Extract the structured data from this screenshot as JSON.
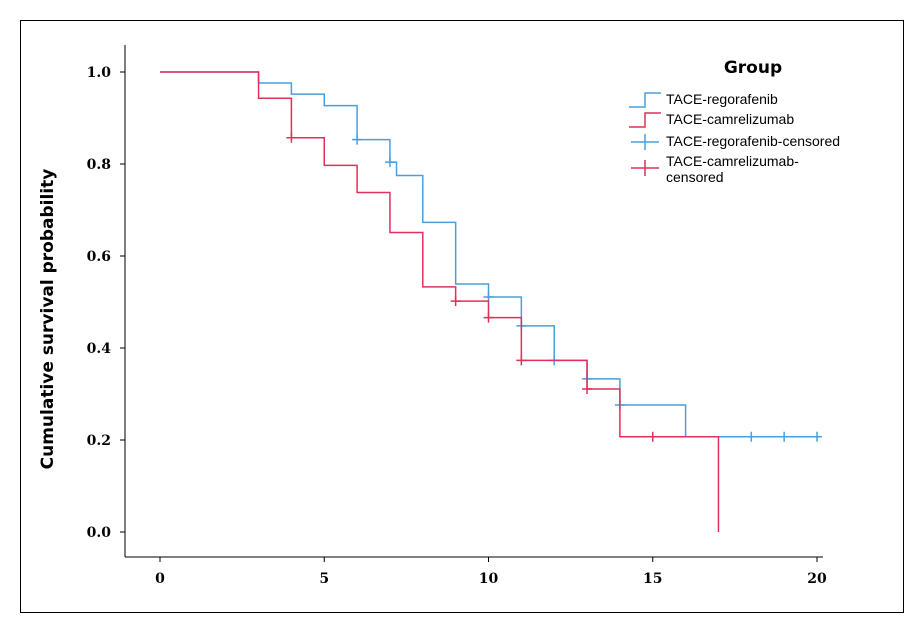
{
  "chart_data": {
    "type": "line",
    "title": "",
    "xlabel": "",
    "ylabel": "Cumulative survival probability",
    "xlim": [
      0,
      20
    ],
    "ylim": [
      0,
      1
    ],
    "xticks": [
      "0",
      "5",
      "10",
      "15",
      "20"
    ],
    "yticks": [
      "0.0",
      "0.2",
      "0.4",
      "0.6",
      "0.8",
      "1.0"
    ],
    "grid": false,
    "legend_title": "Group",
    "legend_position": "top-right",
    "legend": [
      {
        "label": "TACE-regorafenib",
        "kind": "step",
        "color": "#4a9fdb"
      },
      {
        "label": "TACE-camrelizumab",
        "kind": "step",
        "color": "#e0305a"
      },
      {
        "label": "TACE-regorafenib-censored",
        "kind": "cross",
        "color": "#4a9fdb"
      },
      {
        "label": "TACE-camrelizumab-censored",
        "kind": "cross",
        "color": "#e0305a"
      }
    ],
    "series": [
      {
        "name": "TACE-regorafenib",
        "color": "#4a9fdb",
        "steps": [
          [
            0,
            1.0
          ],
          [
            3,
            0.976
          ],
          [
            4,
            0.952
          ],
          [
            5,
            0.927
          ],
          [
            6,
            0.853
          ],
          [
            7,
            0.804
          ],
          [
            7.2,
            0.775
          ],
          [
            8,
            0.673
          ],
          [
            9,
            0.539
          ],
          [
            10,
            0.511
          ],
          [
            11,
            0.448
          ],
          [
            12,
            0.373
          ],
          [
            13,
            0.333
          ],
          [
            14,
            0.276
          ],
          [
            16,
            0.207
          ],
          [
            20,
            0.207
          ]
        ],
        "censored": [
          [
            6,
            0.853
          ],
          [
            7,
            0.804
          ],
          [
            10,
            0.511
          ],
          [
            11,
            0.448
          ],
          [
            12,
            0.373
          ],
          [
            13,
            0.333
          ],
          [
            14,
            0.276
          ],
          [
            18,
            0.207
          ],
          [
            19,
            0.207
          ],
          [
            20,
            0.207
          ]
        ]
      },
      {
        "name": "TACE-camrelizumab",
        "color": "#e0305a",
        "steps": [
          [
            0,
            1.0
          ],
          [
            3,
            0.943
          ],
          [
            4,
            0.857
          ],
          [
            5,
            0.797
          ],
          [
            6,
            0.738
          ],
          [
            7,
            0.651
          ],
          [
            8,
            0.533
          ],
          [
            9,
            0.502
          ],
          [
            10,
            0.466
          ],
          [
            11,
            0.373
          ],
          [
            13,
            0.311
          ],
          [
            14,
            0.207
          ],
          [
            17,
            0.0
          ]
        ],
        "censored": [
          [
            4,
            0.857
          ],
          [
            9,
            0.502
          ],
          [
            10,
            0.466
          ],
          [
            11,
            0.373
          ],
          [
            13,
            0.311
          ],
          [
            15,
            0.207
          ]
        ]
      }
    ]
  }
}
